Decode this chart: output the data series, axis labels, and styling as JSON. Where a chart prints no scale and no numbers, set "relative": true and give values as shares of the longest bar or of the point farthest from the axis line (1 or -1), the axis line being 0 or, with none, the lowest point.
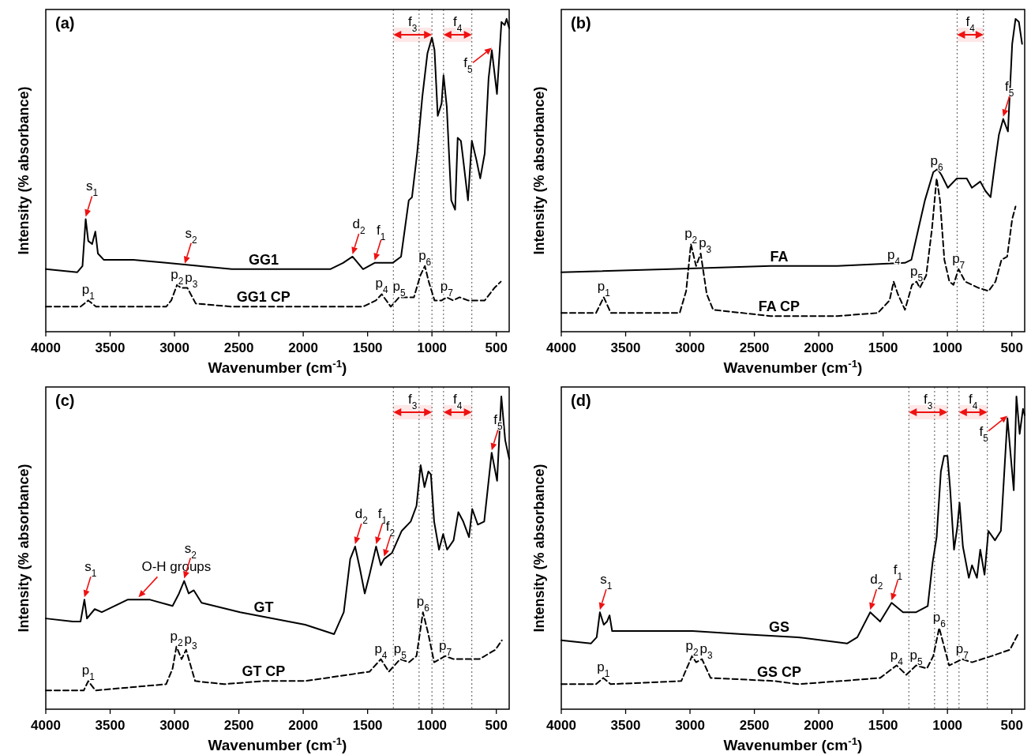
{
  "chart_data": [
    {
      "type": "line",
      "title": "(a)",
      "xlabel": "Wavenumber (cm$^{-1}$)",
      "ylabel": "Intensity (% absorbance)",
      "relative": true,
      "legend": false,
      "grid": false,
      "xlim": [
        4000,
        400
      ],
      "xticks": [
        4000,
        3500,
        3000,
        2500,
        2000,
        1500,
        1000,
        500
      ],
      "series": [
        {
          "name": "GG1",
          "color": "#000000",
          "line_style": "solid",
          "x": [
            4000,
            3755,
            3715,
            3690,
            3670,
            3640,
            3615,
            3595,
            3550,
            3320,
            3065,
            2810,
            2555,
            2045,
            1790,
            1690,
            1617,
            1535,
            1445,
            1305,
            1240,
            1180,
            1155,
            1115,
            1075,
            1035,
            1000,
            980,
            955,
            925,
            910,
            885,
            850,
            820,
            800,
            775,
            760,
            740,
            720,
            690,
            655,
            625,
            590,
            560,
            535,
            495,
            460,
            435,
            420,
            400
          ],
          "values": [
            0.2,
            0.19,
            0.21,
            0.36,
            0.29,
            0.28,
            0.32,
            0.25,
            0.23,
            0.23,
            0.22,
            0.21,
            0.2,
            0.2,
            0.2,
            0.22,
            0.24,
            0.2,
            0.22,
            0.22,
            0.24,
            0.42,
            0.43,
            0.57,
            0.75,
            0.89,
            0.94,
            0.9,
            0.69,
            0.73,
            0.82,
            0.72,
            0.42,
            0.39,
            0.62,
            0.61,
            0.56,
            0.49,
            0.42,
            0.61,
            0.55,
            0.49,
            0.57,
            0.81,
            0.9,
            0.76,
            0.99,
            0.98,
            1.0,
            0.97
          ]
        },
        {
          "name": "GG1 CP",
          "color": "#000000",
          "line_style": "dashed",
          "x": [
            4000,
            3730,
            3670,
            3610,
            3065,
            3025,
            2980,
            2950,
            2900,
            2835,
            2555,
            2045,
            1535,
            1435,
            1390,
            1320,
            1255,
            1140,
            1090,
            1055,
            1025,
            980,
            925,
            885,
            835,
            785,
            720,
            590,
            515,
            465
          ],
          "values": [
            0.08,
            0.08,
            0.1,
            0.08,
            0.08,
            0.1,
            0.15,
            0.14,
            0.14,
            0.09,
            0.08,
            0.08,
            0.08,
            0.1,
            0.12,
            0.08,
            0.11,
            0.11,
            0.18,
            0.21,
            0.16,
            0.1,
            0.1,
            0.11,
            0.1,
            0.11,
            0.1,
            0.1,
            0.14,
            0.16
          ]
        }
      ],
      "ref_lines": [
        {
          "axis": "x",
          "value": 1300,
          "color": "#555555",
          "line_style": "dotted"
        },
        {
          "axis": "x",
          "value": 1100,
          "color": "#555555",
          "line_style": "dotted"
        },
        {
          "axis": "x",
          "value": 1000,
          "color": "#555555",
          "line_style": "dotted"
        },
        {
          "axis": "x",
          "value": 910,
          "color": "#555555",
          "line_style": "dotted"
        },
        {
          "axis": "x",
          "value": 690,
          "color": "#555555",
          "line_style": "dotted"
        }
      ],
      "bands": [
        {
          "axis": "x",
          "from": 1300,
          "to": 1000,
          "label": "f$_{3}$",
          "color": "#ee1111"
        },
        {
          "axis": "x",
          "from": 910,
          "to": 690,
          "label": "f$_{4}$",
          "color": "#ee1111"
        }
      ],
      "annotations": [
        {
          "text": "s$_{1}$",
          "x": 3690,
          "y": 0.36
        },
        {
          "text": "s$_{2}$",
          "x": 2920,
          "y": 0.21
        },
        {
          "text": "d$_{2}$",
          "x": 1617,
          "y": 0.24
        },
        {
          "text": "f$_{1}$",
          "x": 1445,
          "y": 0.22
        },
        {
          "text": "f$_{5}$",
          "x": 535,
          "y": 0.9
        },
        {
          "text": "p$_{1}$",
          "x": 3670,
          "y": 0.1
        },
        {
          "text": "p$_{2}$",
          "x": 2980,
          "y": 0.15
        },
        {
          "text": "p$_{3}$",
          "x": 2900,
          "y": 0.14
        },
        {
          "text": "p$_{4}$",
          "x": 1390,
          "y": 0.12
        },
        {
          "text": "p$_{5}$",
          "x": 1255,
          "y": 0.11
        },
        {
          "text": "p$_{6}$",
          "x": 1055,
          "y": 0.21
        },
        {
          "text": "p$_{7}$",
          "x": 885,
          "y": 0.11
        }
      ]
    },
    {
      "type": "line",
      "title": "(b)",
      "xlabel": "Wavenumber (cm$^{-1}$)",
      "ylabel": "Intensity (% absorbance)",
      "relative": true,
      "legend": false,
      "grid": false,
      "xlim": [
        4000,
        400
      ],
      "xticks": [
        4000,
        3500,
        3000,
        2500,
        2000,
        1500,
        1000,
        500
      ],
      "series": [
        {
          "name": "FA",
          "color": "#000000",
          "line_style": "solid",
          "x": [
            4000,
            3155,
            2375,
            1855,
            1330,
            1280,
            1225,
            1175,
            1110,
            1077,
            1045,
            997,
            927,
            850,
            810,
            745,
            705,
            665,
            627,
            600,
            567,
            530,
            497,
            471,
            445,
            420
          ],
          "values": [
            0.19,
            0.2,
            0.21,
            0.21,
            0.22,
            0.23,
            0.33,
            0.42,
            0.51,
            0.52,
            0.5,
            0.46,
            0.49,
            0.49,
            0.46,
            0.48,
            0.45,
            0.43,
            0.55,
            0.63,
            0.68,
            0.64,
            0.92,
            1.0,
            0.99,
            0.92
          ]
        },
        {
          "name": "FA CP",
          "color": "#000000",
          "line_style": "dashed",
          "x": [
            4000,
            3730,
            3670,
            3615,
            3080,
            3030,
            2993,
            2953,
            2917,
            2870,
            2820,
            2375,
            1855,
            1540,
            1450,
            1418,
            1385,
            1330,
            1275,
            1240,
            1215,
            1165,
            1120,
            1084,
            1058,
            1024,
            985,
            953,
            914,
            862,
            758,
            680,
            627,
            580,
            536,
            497,
            471
          ],
          "values": [
            0.06,
            0.06,
            0.11,
            0.06,
            0.06,
            0.13,
            0.28,
            0.21,
            0.25,
            0.12,
            0.07,
            0.05,
            0.05,
            0.06,
            0.1,
            0.16,
            0.12,
            0.07,
            0.15,
            0.16,
            0.14,
            0.18,
            0.33,
            0.49,
            0.42,
            0.23,
            0.16,
            0.15,
            0.2,
            0.16,
            0.14,
            0.13,
            0.16,
            0.23,
            0.24,
            0.36,
            0.4
          ]
        }
      ],
      "ref_lines": [
        {
          "axis": "x",
          "value": 925,
          "color": "#555555",
          "line_style": "dotted"
        },
        {
          "axis": "x",
          "value": 720,
          "color": "#555555",
          "line_style": "dotted"
        }
      ],
      "bands": [
        {
          "axis": "x",
          "from": 925,
          "to": 720,
          "label": "f$_{4}$",
          "color": "#ee1111"
        }
      ],
      "annotations": [
        {
          "text": "f$_{5}$",
          "x": 567,
          "y": 0.68
        },
        {
          "text": "p$_{1}$",
          "x": 3670,
          "y": 0.11
        },
        {
          "text": "p$_{2}$",
          "x": 2993,
          "y": 0.28
        },
        {
          "text": "p$_{3}$",
          "x": 2917,
          "y": 0.25
        },
        {
          "text": "p$_{4}$",
          "x": 1418,
          "y": 0.16
        },
        {
          "text": "p$_{5}$",
          "x": 1240,
          "y": 0.16
        },
        {
          "text": "p$_{6}$",
          "x": 1084,
          "y": 0.49
        },
        {
          "text": "p$_{7}$",
          "x": 914,
          "y": 0.2
        }
      ]
    },
    {
      "type": "line",
      "title": "(c)",
      "xlabel": "Wavenumber (cm$^{-1}$)",
      "ylabel": "Intensity (% absorbance)",
      "relative": true,
      "legend": false,
      "grid": false,
      "xlim": [
        4000,
        400
      ],
      "xticks": [
        4000,
        3500,
        3000,
        2500,
        2000,
        1500,
        1000,
        500
      ],
      "series": [
        {
          "name": "GT",
          "color": "#000000",
          "line_style": "solid",
          "x": [
            4000,
            3790,
            3730,
            3700,
            3680,
            3620,
            3565,
            3365,
            3190,
            3015,
            2965,
            2925,
            2890,
            2850,
            2790,
            2490,
            1985,
            1760,
            1685,
            1635,
            1597,
            1560,
            1522,
            1485,
            1434,
            1397,
            1372,
            1310,
            1235,
            1165,
            1120,
            1088,
            1058,
            1028,
            1008,
            983,
            945,
            913,
            882,
            832,
            795,
            757,
            712,
            687,
            644,
            594,
            536,
            494,
            461,
            431,
            400
          ],
          "values": [
            0.29,
            0.28,
            0.28,
            0.35,
            0.29,
            0.32,
            0.31,
            0.35,
            0.35,
            0.33,
            0.37,
            0.41,
            0.37,
            0.38,
            0.34,
            0.31,
            0.27,
            0.24,
            0.31,
            0.48,
            0.52,
            0.45,
            0.37,
            0.43,
            0.52,
            0.46,
            0.48,
            0.5,
            0.57,
            0.6,
            0.65,
            0.78,
            0.71,
            0.76,
            0.75,
            0.6,
            0.51,
            0.56,
            0.51,
            0.54,
            0.63,
            0.6,
            0.55,
            0.64,
            0.59,
            0.6,
            0.82,
            0.73,
            1.0,
            0.86,
            0.8
          ]
        },
        {
          "name": "GT CP",
          "color": "#000000",
          "line_style": "dashed",
          "x": [
            4000,
            3705,
            3670,
            3615,
            3065,
            3015,
            2985,
            2945,
            2910,
            2840,
            2615,
            2310,
            1985,
            1485,
            1397,
            1335,
            1247,
            1178,
            1120,
            1070,
            1028,
            983,
            896,
            832,
            632,
            507,
            457
          ],
          "values": [
            0.06,
            0.06,
            0.09,
            0.06,
            0.08,
            0.13,
            0.2,
            0.16,
            0.19,
            0.09,
            0.08,
            0.09,
            0.09,
            0.12,
            0.16,
            0.12,
            0.16,
            0.15,
            0.17,
            0.31,
            0.24,
            0.15,
            0.17,
            0.16,
            0.16,
            0.19,
            0.22
          ]
        }
      ],
      "ref_lines": [
        {
          "axis": "x",
          "value": 1300,
          "color": "#555555",
          "line_style": "dotted"
        },
        {
          "axis": "x",
          "value": 1100,
          "color": "#555555",
          "line_style": "dotted"
        },
        {
          "axis": "x",
          "value": 1000,
          "color": "#555555",
          "line_style": "dotted"
        },
        {
          "axis": "x",
          "value": 910,
          "color": "#555555",
          "line_style": "dotted"
        },
        {
          "axis": "x",
          "value": 690,
          "color": "#555555",
          "line_style": "dotted"
        }
      ],
      "bands": [
        {
          "axis": "x",
          "from": 1300,
          "to": 1000,
          "label": "f$_{3}$",
          "color": "#ee1111"
        },
        {
          "axis": "x",
          "from": 910,
          "to": 690,
          "label": "f$_{4}$",
          "color": "#ee1111"
        }
      ],
      "annotations": [
        {
          "text": "s$_{1}$",
          "x": 3700,
          "y": 0.35
        },
        {
          "text": "O-H groups",
          "x": 3280,
          "y": 0.35
        },
        {
          "text": "s$_{2}$",
          "x": 2925,
          "y": 0.41
        },
        {
          "text": "d$_{2}$",
          "x": 1597,
          "y": 0.52
        },
        {
          "text": "f$_{1}$",
          "x": 1434,
          "y": 0.52
        },
        {
          "text": "f$_{2}$",
          "x": 1372,
          "y": 0.48
        },
        {
          "text": "f$_{5}$",
          "x": 536,
          "y": 0.82
        },
        {
          "text": "p$_{1}$",
          "x": 3670,
          "y": 0.09
        },
        {
          "text": "p$_{2}$",
          "x": 2985,
          "y": 0.2
        },
        {
          "text": "p$_{3}$",
          "x": 2910,
          "y": 0.19
        },
        {
          "text": "p$_{4}$",
          "x": 1397,
          "y": 0.16
        },
        {
          "text": "p$_{5}$",
          "x": 1247,
          "y": 0.16
        },
        {
          "text": "p$_{6}$",
          "x": 1070,
          "y": 0.31
        },
        {
          "text": "p$_{7}$",
          "x": 896,
          "y": 0.17
        }
      ]
    },
    {
      "type": "line",
      "title": "(d)",
      "xlabel": "Wavenumber (cm$^{-1}$)",
      "ylabel": "Intensity (% absorbance)",
      "relative": true,
      "legend": false,
      "grid": false,
      "xlim": [
        4000,
        400
      ],
      "xticks": [
        4000,
        3500,
        3000,
        2500,
        2000,
        1500,
        1000,
        500
      ],
      "series": [
        {
          "name": "GS",
          "color": "#000000",
          "line_style": "solid",
          "x": [
            4000,
            3770,
            3725,
            3700,
            3670,
            3645,
            3625,
            3605,
            3360,
            2980,
            2595,
            2160,
            1780,
            1700,
            1600,
            1523,
            1434,
            1345,
            1243,
            1153,
            1115,
            1084,
            1051,
            1026,
            1000,
            980,
            949,
            924,
            906,
            880,
            834,
            809,
            771,
            745,
            712,
            682,
            631,
            585,
            534,
            485,
            464,
            439,
            413,
            400
          ],
          "values": [
            0.22,
            0.21,
            0.23,
            0.31,
            0.27,
            0.28,
            0.3,
            0.25,
            0.25,
            0.25,
            0.24,
            0.23,
            0.21,
            0.23,
            0.31,
            0.28,
            0.34,
            0.31,
            0.31,
            0.33,
            0.47,
            0.55,
            0.76,
            0.81,
            0.81,
            0.71,
            0.51,
            0.58,
            0.66,
            0.52,
            0.42,
            0.46,
            0.42,
            0.51,
            0.43,
            0.57,
            0.54,
            0.57,
            0.93,
            0.7,
            1.0,
            0.88,
            0.96,
            0.94
          ]
        },
        {
          "name": "GS CP",
          "color": "#000000",
          "line_style": "dashed",
          "x": [
            4000,
            3730,
            3673,
            3617,
            3068,
            2984,
            2953,
            2907,
            2840,
            2340,
            2160,
            1830,
            1523,
            1395,
            1320,
            1243,
            1160,
            1110,
            1064,
            1026,
            987,
            885,
            809,
            656,
            515,
            452
          ],
          "values": [
            0.08,
            0.08,
            0.1,
            0.08,
            0.09,
            0.17,
            0.15,
            0.16,
            0.1,
            0.09,
            0.08,
            0.09,
            0.1,
            0.14,
            0.11,
            0.14,
            0.13,
            0.17,
            0.26,
            0.2,
            0.14,
            0.16,
            0.15,
            0.17,
            0.19,
            0.24
          ]
        }
      ],
      "ref_lines": [
        {
          "axis": "x",
          "value": 1300,
          "color": "#555555",
          "line_style": "dotted"
        },
        {
          "axis": "x",
          "value": 1100,
          "color": "#555555",
          "line_style": "dotted"
        },
        {
          "axis": "x",
          "value": 1000,
          "color": "#555555",
          "line_style": "dotted"
        },
        {
          "axis": "x",
          "value": 910,
          "color": "#555555",
          "line_style": "dotted"
        },
        {
          "axis": "x",
          "value": 690,
          "color": "#555555",
          "line_style": "dotted"
        }
      ],
      "bands": [
        {
          "axis": "x",
          "from": 1300,
          "to": 1000,
          "label": "f$_{3}$",
          "color": "#ee1111"
        },
        {
          "axis": "x",
          "from": 910,
          "to": 690,
          "label": "f$_{4}$",
          "color": "#ee1111"
        }
      ],
      "annotations": [
        {
          "text": "s$_{1}$",
          "x": 3700,
          "y": 0.31
        },
        {
          "text": "d$_{2}$",
          "x": 1600,
          "y": 0.31
        },
        {
          "text": "f$_{1}$",
          "x": 1434,
          "y": 0.34
        },
        {
          "text": "f$_{5}$",
          "x": 534,
          "y": 0.93
        },
        {
          "text": "p$_{1}$",
          "x": 3673,
          "y": 0.1
        },
        {
          "text": "p$_{2}$",
          "x": 2984,
          "y": 0.17
        },
        {
          "text": "p$_{3}$",
          "x": 2907,
          "y": 0.16
        },
        {
          "text": "p$_{4}$",
          "x": 1395,
          "y": 0.14
        },
        {
          "text": "p$_{5}$",
          "x": 1243,
          "y": 0.14
        },
        {
          "text": "p$_{6}$",
          "x": 1064,
          "y": 0.26
        },
        {
          "text": "p$_{7}$",
          "x": 885,
          "y": 0.16
        }
      ]
    }
  ]
}
